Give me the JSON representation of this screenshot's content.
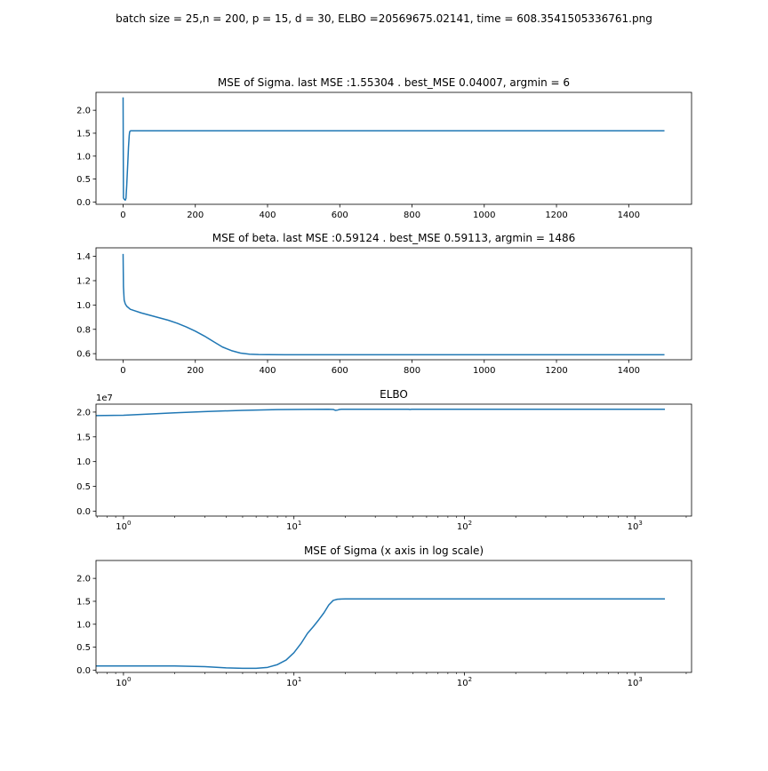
{
  "figure": {
    "suptitle": "batch size = 25,n = 200, p = 15, d = 30,  ELBO =20569675.02141, time = 608.3541505336761.png",
    "line_color": "#1f77b4"
  },
  "chart_data": [
    {
      "type": "line",
      "title": "MSE of Sigma. last MSE :1.55304 . best_MSE 0.04007, argmin = 6",
      "x_scale": "linear",
      "xlim": [
        -75,
        1574
      ],
      "ylim": [
        -0.05,
        2.39
      ],
      "xticks": [
        0,
        200,
        400,
        600,
        800,
        1000,
        1200,
        1400
      ],
      "xtick_labels": [
        "0",
        "200",
        "400",
        "600",
        "800",
        "1000",
        "1200",
        "1400"
      ],
      "yticks": [
        0.0,
        0.5,
        1.0,
        1.5,
        2.0
      ],
      "ytick_labels": [
        "0.0",
        "0.5",
        "1.0",
        "1.5",
        "2.0"
      ],
      "offset_label": "",
      "series": [
        {
          "x": [
            0,
            1,
            3,
            6,
            8,
            10,
            13,
            15,
            17,
            18,
            19,
            20,
            22,
            50,
            200,
            500,
            1000,
            1499
          ],
          "y": [
            2.28,
            0.09,
            0.06,
            0.04,
            0.08,
            0.35,
            0.85,
            1.2,
            1.45,
            1.52,
            1.54,
            1.55,
            1.553,
            1.553,
            1.553,
            1.553,
            1.553,
            1.553
          ]
        }
      ]
    },
    {
      "type": "line",
      "title": "MSE of beta. last MSE :0.59124 . best_MSE 0.59113, argmin = 1486",
      "x_scale": "linear",
      "xlim": [
        -75,
        1574
      ],
      "ylim": [
        0.55,
        1.47
      ],
      "xticks": [
        0,
        200,
        400,
        600,
        800,
        1000,
        1200,
        1400
      ],
      "xtick_labels": [
        "0",
        "200",
        "400",
        "600",
        "800",
        "1000",
        "1200",
        "1400"
      ],
      "yticks": [
        0.6,
        0.8,
        1.0,
        1.2,
        1.4
      ],
      "ytick_labels": [
        "0.6",
        "0.8",
        "1.0",
        "1.2",
        "1.4"
      ],
      "offset_label": "",
      "series": [
        {
          "x": [
            0,
            1,
            3,
            6,
            10,
            20,
            30,
            50,
            75,
            100,
            125,
            150,
            175,
            200,
            225,
            250,
            275,
            300,
            325,
            350,
            375,
            400,
            450,
            500,
            600,
            800,
            1000,
            1200,
            1499
          ],
          "y": [
            1.42,
            1.15,
            1.04,
            1.01,
            0.99,
            0.965,
            0.955,
            0.935,
            0.915,
            0.895,
            0.875,
            0.85,
            0.82,
            0.785,
            0.745,
            0.7,
            0.655,
            0.625,
            0.605,
            0.596,
            0.593,
            0.592,
            0.5915,
            0.5913,
            0.5913,
            0.5913,
            0.5913,
            0.5913,
            0.5912
          ]
        }
      ]
    },
    {
      "type": "line",
      "title": "ELBO",
      "x_scale": "log",
      "xlim": [
        0.69,
        2150
      ],
      "ylim": [
        -0.1,
        2.16
      ],
      "xticks": [
        1,
        10,
        100,
        1000
      ],
      "xtick_labels": [
        "10",
        "10",
        "10",
        "10"
      ],
      "xtick_exponents": [
        "0",
        "1",
        "2",
        "3"
      ],
      "yticks": [
        0.0,
        0.5,
        1.0,
        1.5,
        2.0
      ],
      "ytick_labels": [
        "0.0",
        "0.5",
        "1.0",
        "1.5",
        "2.0"
      ],
      "offset_label": "1e7",
      "series": [
        {
          "x": [
            0.69,
            1,
            2,
            3,
            5,
            8,
            12,
            16,
            17,
            17.5,
            18,
            18.5,
            19,
            25,
            40,
            47,
            48,
            49,
            60,
            100,
            300,
            1000,
            1500
          ],
          "y": [
            1.93,
            1.935,
            1.985,
            2.01,
            2.035,
            2.05,
            2.055,
            2.057,
            2.053,
            2.035,
            2.04,
            2.052,
            2.056,
            2.057,
            2.057,
            2.057,
            2.052,
            2.056,
            2.057,
            2.057,
            2.057,
            2.057,
            2.057
          ]
        }
      ]
    },
    {
      "type": "line",
      "title": "MSE of Sigma (x axis in log scale)",
      "x_scale": "log",
      "xlim": [
        0.69,
        2150
      ],
      "ylim": [
        -0.05,
        2.39
      ],
      "xticks": [
        1,
        10,
        100,
        1000
      ],
      "xtick_labels": [
        "10",
        "10",
        "10",
        "10"
      ],
      "xtick_exponents": [
        "0",
        "1",
        "2",
        "3"
      ],
      "yticks": [
        0.0,
        0.5,
        1.0,
        1.5,
        2.0
      ],
      "ytick_labels": [
        "0.0",
        "0.5",
        "1.0",
        "1.5",
        "2.0"
      ],
      "offset_label": "",
      "series": [
        {
          "x": [
            0.69,
            1,
            2,
            3,
            4,
            5,
            6,
            7,
            8,
            9,
            10,
            11,
            12,
            13,
            14,
            15,
            16,
            17,
            18,
            19,
            20,
            30,
            100,
            1000,
            1500
          ],
          "y": [
            0.09,
            0.09,
            0.09,
            0.075,
            0.05,
            0.04,
            0.04,
            0.06,
            0.12,
            0.22,
            0.38,
            0.58,
            0.8,
            0.95,
            1.1,
            1.25,
            1.42,
            1.52,
            1.545,
            1.55,
            1.553,
            1.553,
            1.553,
            1.553,
            1.553
          ]
        }
      ]
    }
  ]
}
